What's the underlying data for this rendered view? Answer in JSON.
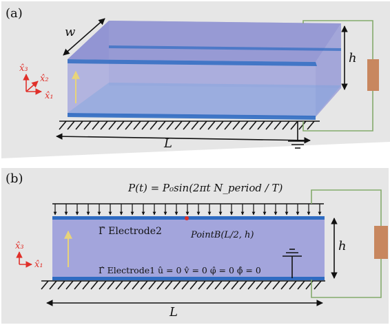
{
  "panel_a": {
    "label": "(a)",
    "dim_width": "w",
    "dim_height": "h",
    "dim_length": "L",
    "axes": {
      "x1": "x̂₁",
      "x2": "x̂₂",
      "x3": "x̂₃"
    }
  },
  "panel_b": {
    "label": "(b)",
    "load_equation": "P(t) = P₀sin(2πt N_period / T)",
    "electrode2": "Γ̂ Electrode2",
    "point_b": "PointB(L/2, h)",
    "electrode1_conditions": "Γ̂ Electrode1  û = 0  v̂ = 0  φ̂ = 0  ϕ̂ = 0",
    "dim_height": "h",
    "dim_length": "L",
    "axes": {
      "x1": "x̂₁",
      "x3": "x̂₃"
    }
  },
  "colors": {
    "slab": "#a3a5dc",
    "electrode": "#2f6cc2",
    "resistor": "#c8875f",
    "wire": "#84ab6c",
    "panel_bg": "#e6e6e6",
    "axes": "#e0302a",
    "polarization": "#e8d47a"
  }
}
